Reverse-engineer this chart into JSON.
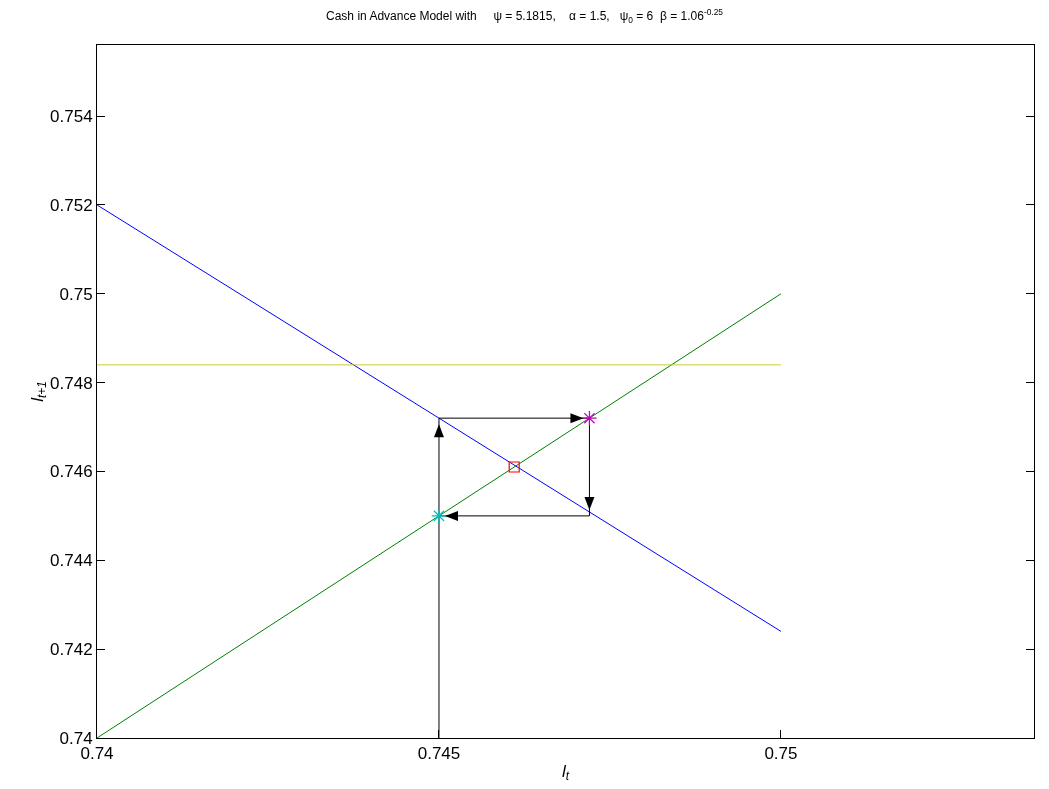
{
  "chart_data": {
    "type": "line",
    "title": "Cash in Advance Model with     ψ = 5.1815,    α = 1.5,   ψ$_{0}$ = 6  β = 1.06$^{-0.25}$",
    "xlabel": "l$_{t}$",
    "ylabel": "l$_{t+1}$",
    "xlim": [
      0.74,
      0.7537
    ],
    "ylim": [
      0.74,
      0.7556
    ],
    "xticks": [
      0.74,
      0.745,
      0.75
    ],
    "yticks": [
      0.74,
      0.742,
      0.744,
      0.746,
      0.748,
      0.75,
      0.752,
      0.754
    ],
    "grid": false,
    "series": [
      {
        "color": "#0000ff",
        "x": [
          0.74,
          0.75
        ],
        "values": [
          0.752,
          0.7424
        ]
      },
      {
        "color": "#008000",
        "x": [
          0.74,
          0.75
        ],
        "values": [
          0.74,
          0.75
        ]
      },
      {
        "color": "#cccc33",
        "x": [
          0.74,
          0.75
        ],
        "values": [
          0.7484,
          0.7484
        ]
      },
      {
        "color": "#000000",
        "x": [
          0.745,
          0.745,
          0.7472,
          0.7472,
          0.745
        ],
        "values": [
          0.74,
          0.7472,
          0.7472,
          0.745,
          0.745
        ]
      },
      {
        "type": "scatter",
        "marker": "square",
        "color": "#ff0000",
        "x": [
          0.7461
        ],
        "values": [
          0.7461
        ]
      },
      {
        "type": "scatter",
        "marker": "cross",
        "color": "#00bfbf",
        "x": [
          0.745
        ],
        "values": [
          0.745
        ]
      },
      {
        "type": "scatter",
        "marker": "cross",
        "color": "#bf00bf",
        "x": [
          0.7472
        ],
        "values": [
          0.7472
        ]
      }
    ]
  }
}
